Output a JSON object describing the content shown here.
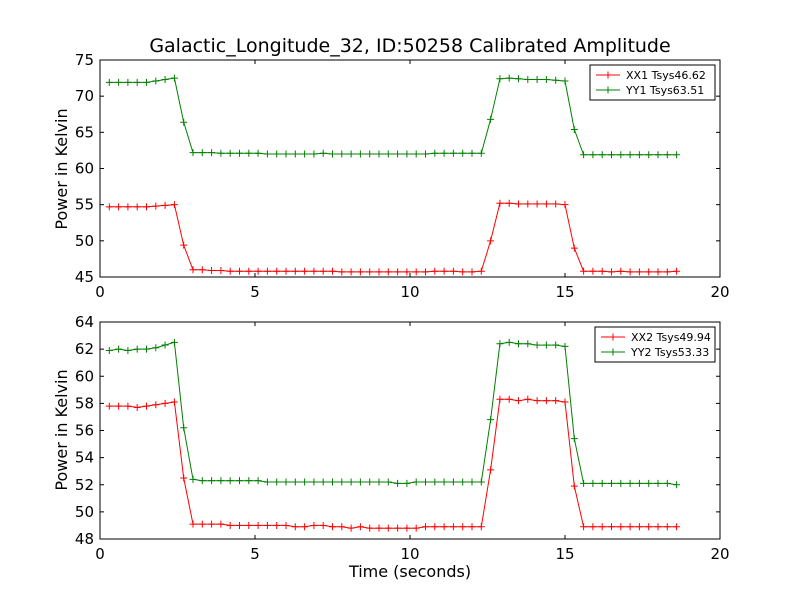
{
  "chart_data": [
    {
      "type": "line",
      "title": "Galactic_Longitude_32, ID:50258 Calibrated Amplitude",
      "xlabel": "",
      "ylabel": "Power in Kelvin",
      "xlim": [
        0,
        20
      ],
      "ylim": [
        45,
        75
      ],
      "xticks": [
        0,
        5,
        10,
        15,
        20
      ],
      "yticks": [
        45,
        50,
        55,
        60,
        65,
        70,
        75
      ],
      "legend_position": "top-right",
      "x": [
        0.3,
        0.6,
        0.9,
        1.2,
        1.5,
        1.8,
        2.1,
        2.4,
        2.7,
        3.0,
        3.3,
        3.6,
        3.9,
        4.2,
        4.5,
        4.8,
        5.1,
        5.4,
        5.7,
        6.0,
        6.3,
        6.6,
        6.9,
        7.2,
        7.5,
        7.8,
        8.1,
        8.4,
        8.7,
        9.0,
        9.3,
        9.6,
        9.9,
        10.2,
        10.5,
        10.8,
        11.1,
        11.4,
        11.7,
        12.0,
        12.3,
        12.6,
        12.9,
        13.2,
        13.5,
        13.8,
        14.1,
        14.4,
        14.7,
        15.0,
        15.3,
        15.6,
        15.9,
        16.2,
        16.5,
        16.8,
        17.1,
        17.4,
        17.7,
        18.0,
        18.3,
        18.6
      ],
      "series": [
        {
          "name": "XX1 Tsys46.62",
          "color": "#ff0000",
          "values": [
            54.7,
            54.7,
            54.7,
            54.7,
            54.7,
            54.8,
            54.9,
            55.0,
            49.4,
            46.0,
            46.0,
            45.9,
            45.9,
            45.8,
            45.8,
            45.8,
            45.8,
            45.8,
            45.8,
            45.8,
            45.8,
            45.8,
            45.8,
            45.8,
            45.8,
            45.7,
            45.7,
            45.7,
            45.7,
            45.7,
            45.7,
            45.7,
            45.7,
            45.7,
            45.7,
            45.8,
            45.8,
            45.8,
            45.7,
            45.7,
            45.8,
            50.0,
            55.2,
            55.2,
            55.1,
            55.1,
            55.1,
            55.1,
            55.1,
            55.0,
            49.0,
            45.8,
            45.8,
            45.8,
            45.7,
            45.8,
            45.7,
            45.7,
            45.7,
            45.7,
            45.7,
            45.8
          ]
        },
        {
          "name": "YY1 Tsys63.51",
          "color": "#008000",
          "values": [
            71.9,
            71.9,
            71.9,
            71.9,
            71.9,
            72.1,
            72.3,
            72.5,
            66.4,
            62.2,
            62.2,
            62.2,
            62.1,
            62.1,
            62.1,
            62.1,
            62.1,
            62.0,
            62.0,
            62.0,
            62.0,
            62.0,
            62.0,
            62.1,
            62.0,
            62.0,
            62.0,
            62.0,
            62.0,
            62.0,
            62.0,
            62.0,
            62.0,
            62.0,
            62.0,
            62.1,
            62.1,
            62.1,
            62.1,
            62.1,
            62.1,
            66.8,
            72.4,
            72.5,
            72.4,
            72.3,
            72.3,
            72.3,
            72.2,
            72.1,
            65.4,
            61.9,
            61.9,
            61.9,
            61.9,
            61.9,
            61.9,
            61.9,
            61.9,
            61.9,
            61.9,
            61.9
          ]
        }
      ]
    },
    {
      "type": "line",
      "title": "",
      "xlabel": "Time (seconds)",
      "ylabel": "Power in Kelvin",
      "xlim": [
        0,
        20
      ],
      "ylim": [
        48,
        64
      ],
      "xticks": [
        0,
        5,
        10,
        15,
        20
      ],
      "yticks": [
        48,
        50,
        52,
        54,
        56,
        58,
        60,
        62,
        64
      ],
      "legend_position": "top-right",
      "x": [
        0.3,
        0.6,
        0.9,
        1.2,
        1.5,
        1.8,
        2.1,
        2.4,
        2.7,
        3.0,
        3.3,
        3.6,
        3.9,
        4.2,
        4.5,
        4.8,
        5.1,
        5.4,
        5.7,
        6.0,
        6.3,
        6.6,
        6.9,
        7.2,
        7.5,
        7.8,
        8.1,
        8.4,
        8.7,
        9.0,
        9.3,
        9.6,
        9.9,
        10.2,
        10.5,
        10.8,
        11.1,
        11.4,
        11.7,
        12.0,
        12.3,
        12.6,
        12.9,
        13.2,
        13.5,
        13.8,
        14.1,
        14.4,
        14.7,
        15.0,
        15.3,
        15.6,
        15.9,
        16.2,
        16.5,
        16.8,
        17.1,
        17.4,
        17.7,
        18.0,
        18.3,
        18.6
      ],
      "series": [
        {
          "name": "XX2 Tsys49.94",
          "color": "#ff0000",
          "values": [
            57.8,
            57.8,
            57.8,
            57.7,
            57.8,
            57.9,
            58.0,
            58.1,
            52.5,
            49.1,
            49.1,
            49.1,
            49.1,
            49.0,
            49.0,
            49.0,
            49.0,
            49.0,
            49.0,
            49.0,
            48.9,
            48.9,
            49.0,
            49.0,
            48.9,
            48.9,
            48.8,
            48.9,
            48.8,
            48.8,
            48.8,
            48.8,
            48.8,
            48.8,
            48.9,
            48.9,
            48.9,
            48.9,
            48.9,
            48.9,
            48.9,
            53.1,
            58.3,
            58.3,
            58.2,
            58.3,
            58.2,
            58.2,
            58.2,
            58.1,
            51.9,
            48.9,
            48.9,
            48.9,
            48.9,
            48.9,
            48.9,
            48.9,
            48.9,
            48.9,
            48.9,
            48.9
          ]
        },
        {
          "name": "YY2 Tsys53.33",
          "color": "#008000",
          "values": [
            61.9,
            62.0,
            61.9,
            62.0,
            62.0,
            62.1,
            62.3,
            62.5,
            56.2,
            52.4,
            52.3,
            52.3,
            52.3,
            52.3,
            52.3,
            52.3,
            52.3,
            52.2,
            52.2,
            52.2,
            52.2,
            52.2,
            52.2,
            52.2,
            52.2,
            52.2,
            52.2,
            52.2,
            52.2,
            52.2,
            52.2,
            52.1,
            52.1,
            52.2,
            52.2,
            52.2,
            52.2,
            52.2,
            52.2,
            52.2,
            52.2,
            56.8,
            62.4,
            62.5,
            62.4,
            62.4,
            62.3,
            62.3,
            62.3,
            62.2,
            55.4,
            52.1,
            52.1,
            52.1,
            52.1,
            52.1,
            52.1,
            52.1,
            52.1,
            52.1,
            52.1,
            52.0
          ]
        }
      ]
    }
  ]
}
